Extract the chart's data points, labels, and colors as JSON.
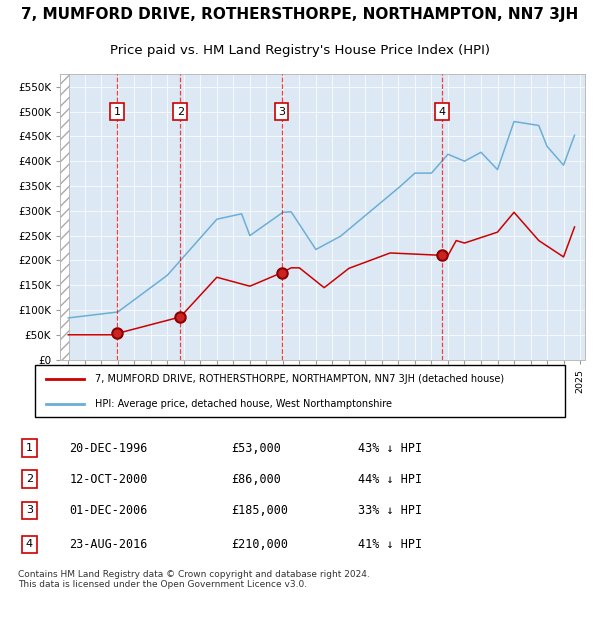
{
  "title": "7, MUMFORD DRIVE, ROTHERSTHORPE, NORTHAMPTON, NN7 3JH",
  "subtitle": "Price paid vs. HM Land Registry's House Price Index (HPI)",
  "title_fontsize": 11,
  "subtitle_fontsize": 9.5,
  "plot_bg_color": "#dce9f5",
  "legend_line1": "7, MUMFORD DRIVE, ROTHERSTHORPE, NORTHAMPTON, NN7 3JH (detached house)",
  "legend_line2": "HPI: Average price, detached house, West Northamptonshire",
  "footer": "Contains HM Land Registry data © Crown copyright and database right 2024.\nThis data is licensed under the Open Government Licence v3.0.",
  "transactions": [
    {
      "num": 1,
      "date": "20-DEC-1996",
      "price": 53000,
      "pct": "43% ↓ HPI",
      "year_x": 1996.97
    },
    {
      "num": 2,
      "date": "12-OCT-2000",
      "price": 86000,
      "pct": "44% ↓ HPI",
      "year_x": 2000.79
    },
    {
      "num": 3,
      "date": "01-DEC-2006",
      "price": 185000,
      "pct": "33% ↓ HPI",
      "year_x": 2006.92
    },
    {
      "num": 4,
      "date": "23-AUG-2016",
      "price": 210000,
      "pct": "41% ↓ HPI",
      "year_x": 2016.64
    }
  ],
  "yticks": [
    0,
    50000,
    100000,
    150000,
    200000,
    250000,
    300000,
    350000,
    400000,
    450000,
    500000,
    550000
  ],
  "ytick_labels": [
    "£0",
    "£50K",
    "£100K",
    "£150K",
    "£200K",
    "£250K",
    "£300K",
    "£350K",
    "£400K",
    "£450K",
    "£500K",
    "£550K"
  ],
  "ylim": [
    0,
    575000
  ],
  "xlim": [
    1993.5,
    2025.3
  ]
}
